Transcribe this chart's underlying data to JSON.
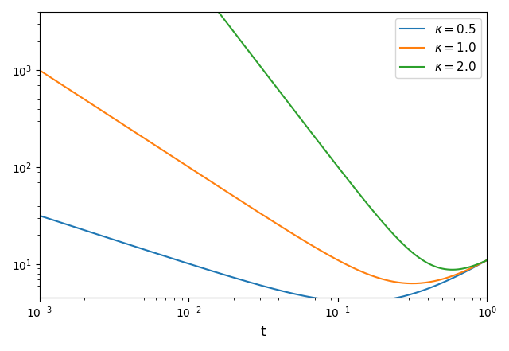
{
  "kappas": [
    0.5,
    1.0,
    2.0
  ],
  "colors": [
    "#1f77b4",
    "#ff7f0e",
    "#2ca02c"
  ],
  "t_min": 0.001,
  "t_max": 1.0,
  "n_points": 500,
  "xlabel": "t",
  "xlim": [
    0.001,
    1.0
  ],
  "ylim": [
    4.5,
    4000
  ],
  "figsize": [
    6.4,
    4.41
  ],
  "dpi": 100,
  "n": 10,
  "C": 1.0
}
